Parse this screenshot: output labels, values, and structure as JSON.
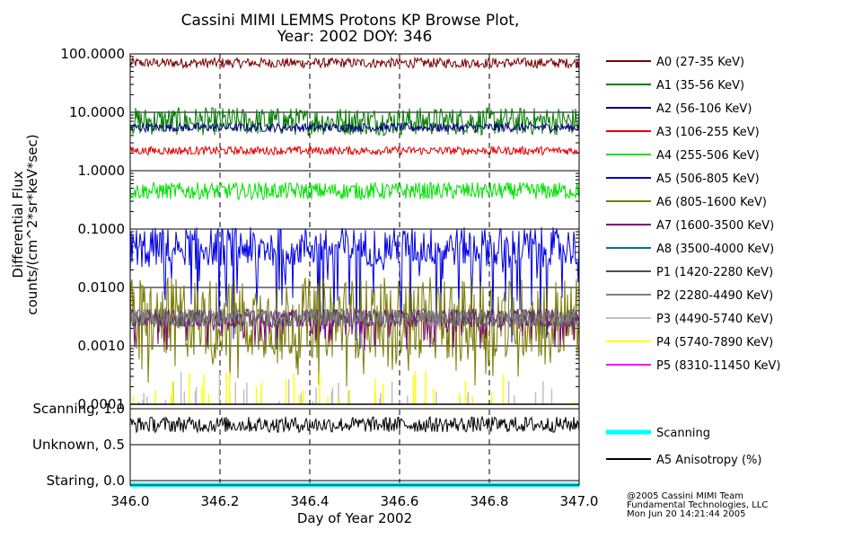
{
  "title": {
    "line1": "Cassini MIMI LEMMS Protons KP Browse Plot,",
    "line2": "Year: 2002 DOY: 346"
  },
  "credit": {
    "line1": "@2005 Cassini MIMI Team",
    "line2": "Fundamental Technologies, LLC",
    "line3": "Mon Jun 20 14:21:44 2005"
  },
  "chart_data": [
    {
      "type": "line",
      "xlabel": "Day of Year 2002",
      "ylabel_line1": "Differential Flux",
      "ylabel_line2": "counts/(cm^2*sr*keV*sec)",
      "xlim": [
        346.0,
        347.0
      ],
      "ylim": [
        0.0001,
        100.0
      ],
      "yscale": "log",
      "grid": true,
      "legend_position": "right",
      "x_tick_labels": [
        "346.0",
        "346.2",
        "346.4",
        "346.6",
        "346.8",
        "347.0"
      ],
      "x_ticks": [
        346.0,
        346.2,
        346.4,
        346.6,
        346.8,
        347.0
      ],
      "y_tick_labels": [
        "0.0001",
        "0.0010",
        "0.0100",
        "0.1000",
        "1.0000",
        "10.0000",
        "100.0000"
      ],
      "y_ticks": [
        0.0001,
        0.001,
        0.01,
        0.1,
        1.0,
        10.0,
        100.0
      ],
      "series": [
        {
          "name": "A0 (27-35 KeV)",
          "color": "#7a0000",
          "typical": 70,
          "min": 55,
          "max": 90
        },
        {
          "name": "A1 (35-56 KeV)",
          "color": "#007a00",
          "typical": 7,
          "min": 3.5,
          "max": 14
        },
        {
          "name": "A2 (56-106 KeV)",
          "color": "#00007a",
          "typical": 5.5,
          "min": 4.5,
          "max": 7
        },
        {
          "name": "A3 (106-255 KeV)",
          "color": "#e00000",
          "typical": 2.2,
          "min": 1.8,
          "max": 2.7
        },
        {
          "name": "A4 (255-506 KeV)",
          "color": "#00e000",
          "typical": 0.45,
          "min": 0.3,
          "max": 0.7
        },
        {
          "name": "A5 (506-805 KeV)",
          "color": "#0000e0",
          "typical": 0.05,
          "min": 0.0008,
          "max": 0.15
        },
        {
          "name": "A6 (805-1600 KeV)",
          "color": "#7a7a00",
          "typical": 0.003,
          "min": 0.0002,
          "max": 0.03
        },
        {
          "name": "A7 (1600-3500 KeV)",
          "color": "#7a007a",
          "typical": 0.003,
          "min": 0.0008,
          "max": 0.005
        },
        {
          "name": "A8 (3500-4000 KeV)",
          "color": "#007a7a",
          "typical": null,
          "min": null,
          "max": null
        },
        {
          "name": "P1 (1420-2280 KeV)",
          "color": "#505050",
          "typical": 0.003,
          "min": 0.002,
          "max": 0.005
        },
        {
          "name": "P2 (2280-4490 KeV)",
          "color": "#808080",
          "typical": 0.003,
          "min": 0.002,
          "max": 0.005
        },
        {
          "name": "P3 (4490-5740 KeV)",
          "color": "#c0c0c0",
          "typical": 0.0002,
          "min": 0.0001,
          "max": 0.0004
        },
        {
          "name": "P4 (5740-7890 KeV)",
          "color": "#ffff00",
          "typical": 0.0002,
          "min": 0.0001,
          "max": 0.0004
        },
        {
          "name": "P5 (8310-11450 KeV)",
          "color": "#ff00ff",
          "typical": null,
          "min": null,
          "max": null
        }
      ]
    },
    {
      "type": "line",
      "xlabel": "Day of Year 2002",
      "xlim": [
        346.0,
        347.0
      ],
      "ylim": [
        0.0,
        1.0
      ],
      "grid": true,
      "legend_position": "right",
      "y_tick_labels": [
        "Staring, 0.0",
        "Unknown, 0.5",
        "Scanning, 1.0"
      ],
      "y_ticks": [
        0.0,
        0.5,
        1.0
      ],
      "series": [
        {
          "name": "Scanning",
          "color": "#00ffff",
          "value": 0.0
        },
        {
          "name": "A5 Anisotropy (%)",
          "color": "#000000",
          "typical": 0.78,
          "min": 0.68,
          "max": 0.9
        }
      ]
    }
  ]
}
